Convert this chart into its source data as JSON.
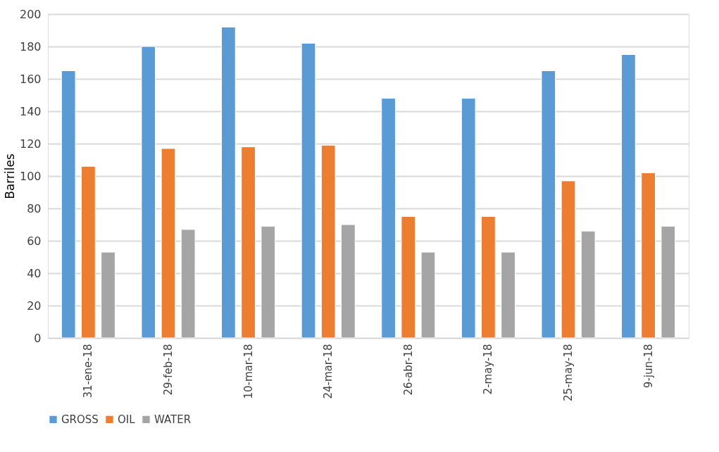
{
  "chart_data": {
    "type": "bar",
    "ylabel": "Barriles",
    "categories": [
      "31-ene-18",
      "29-feb-18",
      "10-mar-18",
      "24-mar-18",
      "26-abr-18",
      "2-may-18",
      "25-may-18",
      "9-jun-18"
    ],
    "series": [
      {
        "name": "GROSS",
        "color": "#5b9bd5",
        "values": [
          165,
          180,
          192,
          182,
          148,
          148,
          165,
          175
        ]
      },
      {
        "name": "OIL",
        "color": "#ed7d31",
        "values": [
          106,
          117,
          118,
          119,
          75,
          75,
          97,
          102
        ]
      },
      {
        "name": "WATER",
        "color": "#a5a5a5",
        "values": [
          53,
          67,
          69,
          70,
          53,
          53,
          66,
          69
        ]
      }
    ],
    "ylim": [
      0,
      200
    ],
    "yticks": [
      0,
      20,
      40,
      60,
      80,
      100,
      120,
      140,
      160,
      180,
      200
    ],
    "grid": "y",
    "legend": "bottom"
  }
}
